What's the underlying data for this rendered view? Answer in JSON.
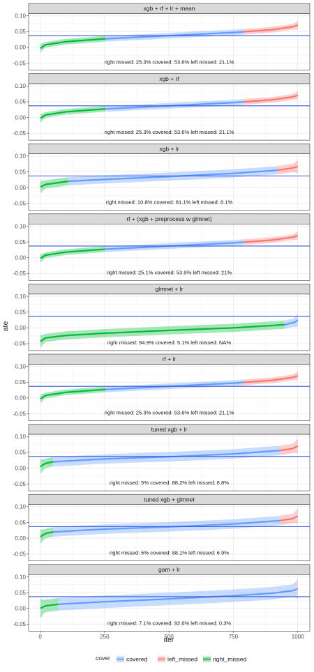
{
  "chart_data": {
    "type": "line",
    "facet_strip_color": "#d9d9d9",
    "xlabel": "iter",
    "ylabel": "ate",
    "xlim": [
      1,
      1000
    ],
    "ylim": [
      -0.07,
      0.1
    ],
    "x_ticks": [
      0,
      250,
      500,
      750,
      1000
    ],
    "y_ticks": [
      0.1,
      0.05,
      0.0,
      -0.05
    ],
    "y_tick_labels": [
      "0.10",
      "0.05",
      "0.00",
      "-0.05"
    ],
    "reference_line": {
      "y": 0.037,
      "color": "#3355dd"
    },
    "legend": {
      "title": "cover",
      "position": "bottom",
      "items": [
        {
          "key": "covered",
          "label": "covered",
          "color": "#619CFF"
        },
        {
          "key": "left_missed",
          "label": "left_missed",
          "color": "#F8766D"
        },
        {
          "key": "right_missed",
          "label": "right_missed",
          "color": "#00BA38"
        }
      ]
    },
    "panels": [
      {
        "title": "xgb + rf + lr + mean",
        "annotation": "right missed: 25.3% covered: 53.6% left missed: 21.1%",
        "right_missed_pct": 25.3,
        "covered_pct": 53.6,
        "left_missed_pct": 21.1,
        "curve": [
          [
            1,
            -0.003
          ],
          [
            20,
            0.008
          ],
          [
            100,
            0.018
          ],
          [
            250,
            0.027
          ],
          [
            500,
            0.037
          ],
          [
            750,
            0.047
          ],
          [
            900,
            0.056
          ],
          [
            980,
            0.065
          ],
          [
            1000,
            0.07
          ]
        ],
        "band_halfwidth": 0.009
      },
      {
        "title": "xgb + rf",
        "annotation": "right missed: 25.3% covered: 53.6% left missed: 21.1%",
        "right_missed_pct": 25.3,
        "covered_pct": 53.6,
        "left_missed_pct": 21.1,
        "curve": [
          [
            1,
            -0.003
          ],
          [
            20,
            0.008
          ],
          [
            100,
            0.018
          ],
          [
            250,
            0.027
          ],
          [
            500,
            0.037
          ],
          [
            750,
            0.047
          ],
          [
            900,
            0.056
          ],
          [
            980,
            0.065
          ],
          [
            1000,
            0.07
          ]
        ],
        "band_halfwidth": 0.009
      },
      {
        "title": "xgb + lr",
        "annotation": "right missed: 10.8% covered: 81.1% left missed: 8.1%",
        "right_missed_pct": 10.8,
        "covered_pct": 81.1,
        "left_missed_pct": 8.1,
        "curve": [
          [
            1,
            0.002
          ],
          [
            20,
            0.01
          ],
          [
            108,
            0.02
          ],
          [
            250,
            0.026
          ],
          [
            500,
            0.035
          ],
          [
            750,
            0.045
          ],
          [
            919,
            0.055
          ],
          [
            980,
            0.062
          ],
          [
            1000,
            0.067
          ]
        ],
        "band_halfwidth": 0.013
      },
      {
        "title": "rf + (xgb + preprocess w glmnet)",
        "annotation": "right missed: 25.1% covered: 53.9% left missed: 21%",
        "right_missed_pct": 25.1,
        "covered_pct": 53.9,
        "left_missed_pct": 21.0,
        "curve": [
          [
            1,
            -0.002
          ],
          [
            20,
            0.008
          ],
          [
            100,
            0.018
          ],
          [
            251,
            0.027
          ],
          [
            500,
            0.037
          ],
          [
            750,
            0.047
          ],
          [
            900,
            0.056
          ],
          [
            980,
            0.065
          ],
          [
            1000,
            0.07
          ]
        ],
        "band_halfwidth": 0.009
      },
      {
        "title": "glmnet + lr",
        "annotation": "right missed: 94.9% covered: 5.1% left missed: NA%",
        "right_missed_pct": 94.9,
        "covered_pct": 5.1,
        "left_missed_pct": null,
        "curve": [
          [
            1,
            -0.043
          ],
          [
            20,
            -0.032
          ],
          [
            100,
            -0.024
          ],
          [
            250,
            -0.017
          ],
          [
            500,
            -0.008
          ],
          [
            750,
            0.0
          ],
          [
            949,
            0.01
          ],
          [
            990,
            0.018
          ],
          [
            1000,
            0.025
          ]
        ],
        "band_halfwidth": 0.013
      },
      {
        "title": "rf + lr",
        "annotation": "right missed: 25.3% covered: 53.6% left missed: 21.1%",
        "right_missed_pct": 25.3,
        "covered_pct": 53.6,
        "left_missed_pct": 21.1,
        "curve": [
          [
            1,
            -0.003
          ],
          [
            20,
            0.008
          ],
          [
            100,
            0.018
          ],
          [
            250,
            0.027
          ],
          [
            500,
            0.037
          ],
          [
            750,
            0.047
          ],
          [
            900,
            0.056
          ],
          [
            980,
            0.065
          ],
          [
            1000,
            0.07
          ]
        ],
        "band_halfwidth": 0.009
      },
      {
        "title": "tuned xgb + lr",
        "annotation": "right missed: 5% covered: 88.2% left missed: 6.8%",
        "right_missed_pct": 5.0,
        "covered_pct": 88.2,
        "left_missed_pct": 6.8,
        "curve": [
          [
            1,
            0.005
          ],
          [
            20,
            0.015
          ],
          [
            50,
            0.02
          ],
          [
            250,
            0.029
          ],
          [
            500,
            0.036
          ],
          [
            750,
            0.045
          ],
          [
            932,
            0.056
          ],
          [
            980,
            0.062
          ],
          [
            1000,
            0.07
          ]
        ],
        "band_halfwidth": 0.015
      },
      {
        "title": "tuned xgb + glmnet",
        "annotation": "right missed: 5% covered: 88.1% left missed: 6.9%",
        "right_missed_pct": 5.0,
        "covered_pct": 88.1,
        "left_missed_pct": 6.9,
        "curve": [
          [
            1,
            0.005
          ],
          [
            20,
            0.015
          ],
          [
            50,
            0.02
          ],
          [
            250,
            0.029
          ],
          [
            500,
            0.036
          ],
          [
            750,
            0.045
          ],
          [
            931,
            0.056
          ],
          [
            980,
            0.062
          ],
          [
            1000,
            0.07
          ]
        ],
        "band_halfwidth": 0.015
      },
      {
        "title": "gam + lr",
        "annotation": "right missed: 7.1% covered: 92.6% left missed: 0.3%",
        "right_missed_pct": 7.1,
        "covered_pct": 92.6,
        "left_missed_pct": 0.3,
        "curve": [
          [
            1,
            0.0
          ],
          [
            20,
            0.008
          ],
          [
            71,
            0.013
          ],
          [
            250,
            0.021
          ],
          [
            500,
            0.03
          ],
          [
            750,
            0.04
          ],
          [
            900,
            0.048
          ],
          [
            980,
            0.056
          ],
          [
            1000,
            0.062
          ]
        ],
        "band_halfwidth": 0.02
      }
    ]
  }
}
